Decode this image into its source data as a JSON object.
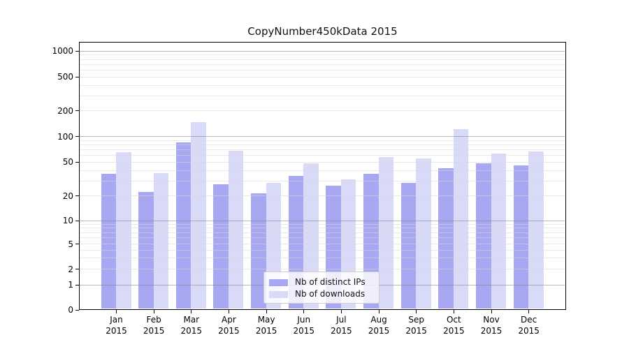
{
  "figure": {
    "title": "CopyNumber450kData 2015"
  },
  "chart_data": {
    "type": "bar",
    "title": "CopyNumber450kData 2015",
    "xlabel": "",
    "ylabel": "",
    "categories": [
      "Jan 2015",
      "Feb 2015",
      "Mar 2015",
      "Apr 2015",
      "May 2015",
      "Jun 2015",
      "Jul 2015",
      "Aug 2015",
      "Sep 2015",
      "Oct 2015",
      "Nov 2015",
      "Dec 2015"
    ],
    "series": [
      {
        "name": "Nb of distinct IPs",
        "color": "#a8a8f2",
        "values": [
          36,
          22,
          85,
          27,
          21,
          34,
          26,
          36,
          28,
          42,
          48,
          45
        ]
      },
      {
        "name": "Nb of downloads",
        "color": "#d9d9f8",
        "values": [
          65,
          37,
          145,
          67,
          28,
          48,
          31,
          57,
          55,
          122,
          62,
          66
        ]
      }
    ],
    "yscale": "log-like (symlog, linear below 1)",
    "yticks": [
      0,
      1,
      2,
      5,
      10,
      20,
      50,
      100,
      200,
      500,
      1000
    ],
    "ylim": [
      0,
      1200
    ],
    "grid": {
      "major_values": [
        1,
        10,
        100,
        1000
      ],
      "minor_values": [
        2,
        3,
        4,
        5,
        6,
        7,
        8,
        9,
        20,
        30,
        40,
        50,
        60,
        70,
        80,
        90,
        200,
        300,
        400,
        500,
        600,
        700,
        800,
        900
      ],
      "major_color": "#b3b3b3",
      "minor_color": "#ebebeb",
      "drawn_above_bars": true
    },
    "legend": {
      "position": "lower-center-inside",
      "items": [
        "Nb of distinct IPs",
        "Nb of downloads"
      ]
    }
  }
}
